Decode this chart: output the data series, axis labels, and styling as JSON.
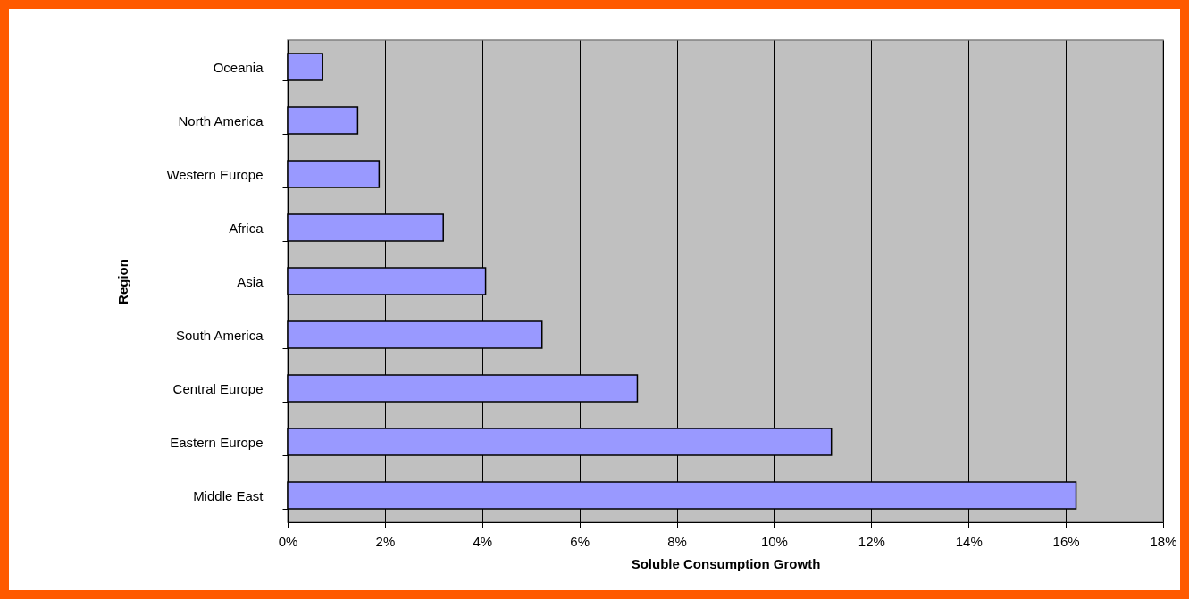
{
  "chart_data": {
    "type": "bar",
    "orientation": "horizontal",
    "xlabel": "Soluble Consumption Growth",
    "ylabel": "Region",
    "categories": [
      "Oceania",
      "North America",
      "Western Europe",
      "Africa",
      "Asia",
      "South America",
      "Central Europe",
      "Eastern Europe",
      "Middle East"
    ],
    "values": [
      0.72,
      1.44,
      1.88,
      3.2,
      4.07,
      5.23,
      7.19,
      11.18,
      16.21
    ],
    "color": "#9999ff",
    "xlim": [
      0,
      18
    ],
    "xticks": [
      {
        "value": 0,
        "label": "0%"
      },
      {
        "value": 2,
        "label": "2%"
      },
      {
        "value": 4,
        "label": "4%"
      },
      {
        "value": 6,
        "label": "6%"
      },
      {
        "value": 8,
        "label": "8%"
      },
      {
        "value": 10,
        "label": "10%"
      },
      {
        "value": 12,
        "label": "12%"
      },
      {
        "value": 14,
        "label": "14%"
      },
      {
        "value": 16,
        "label": "16%"
      },
      {
        "value": 18,
        "label": "18%"
      }
    ],
    "grid": "x"
  }
}
